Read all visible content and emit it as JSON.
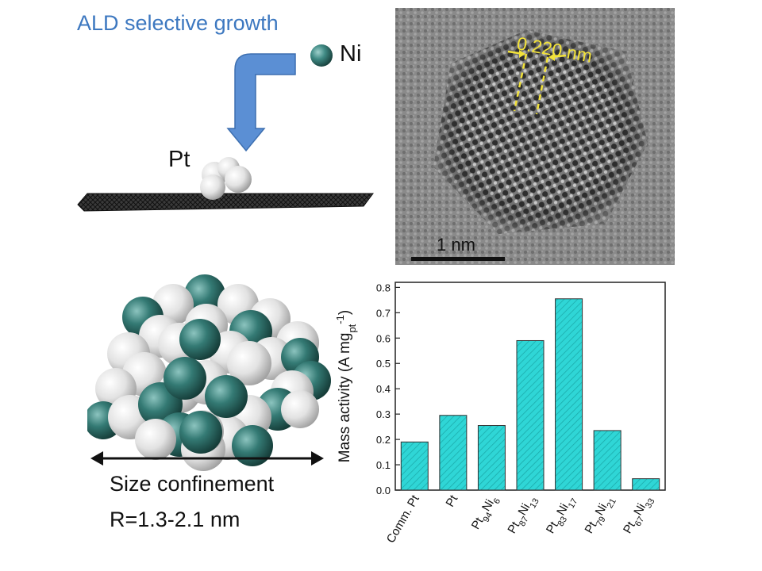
{
  "schematic": {
    "title": "ALD selective growth",
    "ni_label": "Ni",
    "pt_label": "Pt",
    "size_label": "Size confinement",
    "range_label": "R=1.3-2.1 nm"
  },
  "tem": {
    "spacing_label": "0.220 nm",
    "scalebar_label": "1 nm"
  },
  "colors": {
    "title_blue": "#3d78c0",
    "arrow_blue": "#5b8fd4",
    "bar_fill": "#2fd6d6",
    "ni_teal": "#2f6f6a",
    "pt_white": "#e6e6e6",
    "lattice_yellow": "#f2e23a"
  },
  "chart_data": {
    "type": "bar",
    "categories": [
      "Comm. Pt",
      "Pt",
      "Pt94Ni6",
      "Pt87Ni13",
      "Pt83Ni17",
      "Pt79Ni21",
      "Pt67Ni33"
    ],
    "category_parts": [
      [
        {
          "t": "Comm. Pt",
          "sub": false
        }
      ],
      [
        {
          "t": "Pt",
          "sub": false
        }
      ],
      [
        {
          "t": "Pt",
          "sub": false
        },
        {
          "t": "94",
          "sub": true
        },
        {
          "t": "Ni",
          "sub": false
        },
        {
          "t": "6",
          "sub": true
        }
      ],
      [
        {
          "t": "Pt",
          "sub": false
        },
        {
          "t": "87",
          "sub": true
        },
        {
          "t": "Ni",
          "sub": false
        },
        {
          "t": "13",
          "sub": true
        }
      ],
      [
        {
          "t": "Pt",
          "sub": false
        },
        {
          "t": "83",
          "sub": true
        },
        {
          "t": "Ni",
          "sub": false
        },
        {
          "t": "17",
          "sub": true
        }
      ],
      [
        {
          "t": "Pt",
          "sub": false
        },
        {
          "t": "79",
          "sub": true
        },
        {
          "t": "Ni",
          "sub": false
        },
        {
          "t": "21",
          "sub": true
        }
      ],
      [
        {
          "t": "Pt",
          "sub": false
        },
        {
          "t": "67",
          "sub": true
        },
        {
          "t": "Ni",
          "sub": false
        },
        {
          "t": "33",
          "sub": true
        }
      ]
    ],
    "values": [
      0.19,
      0.295,
      0.255,
      0.59,
      0.755,
      0.235,
      0.045
    ],
    "ylabel": "Mass activity (A mgpt-1)",
    "ylabel_parts": {
      "main": "Mass activity (A mg",
      "sub": "pt",
      "sup": "-1",
      "close": ")"
    },
    "ylim": [
      0,
      0.82
    ],
    "yticks": [
      "0.0",
      "0.1",
      "0.2",
      "0.3",
      "0.4",
      "0.5",
      "0.6",
      "0.7",
      "0.8"
    ],
    "grid": false,
    "pattern": "diagonal hatch"
  }
}
